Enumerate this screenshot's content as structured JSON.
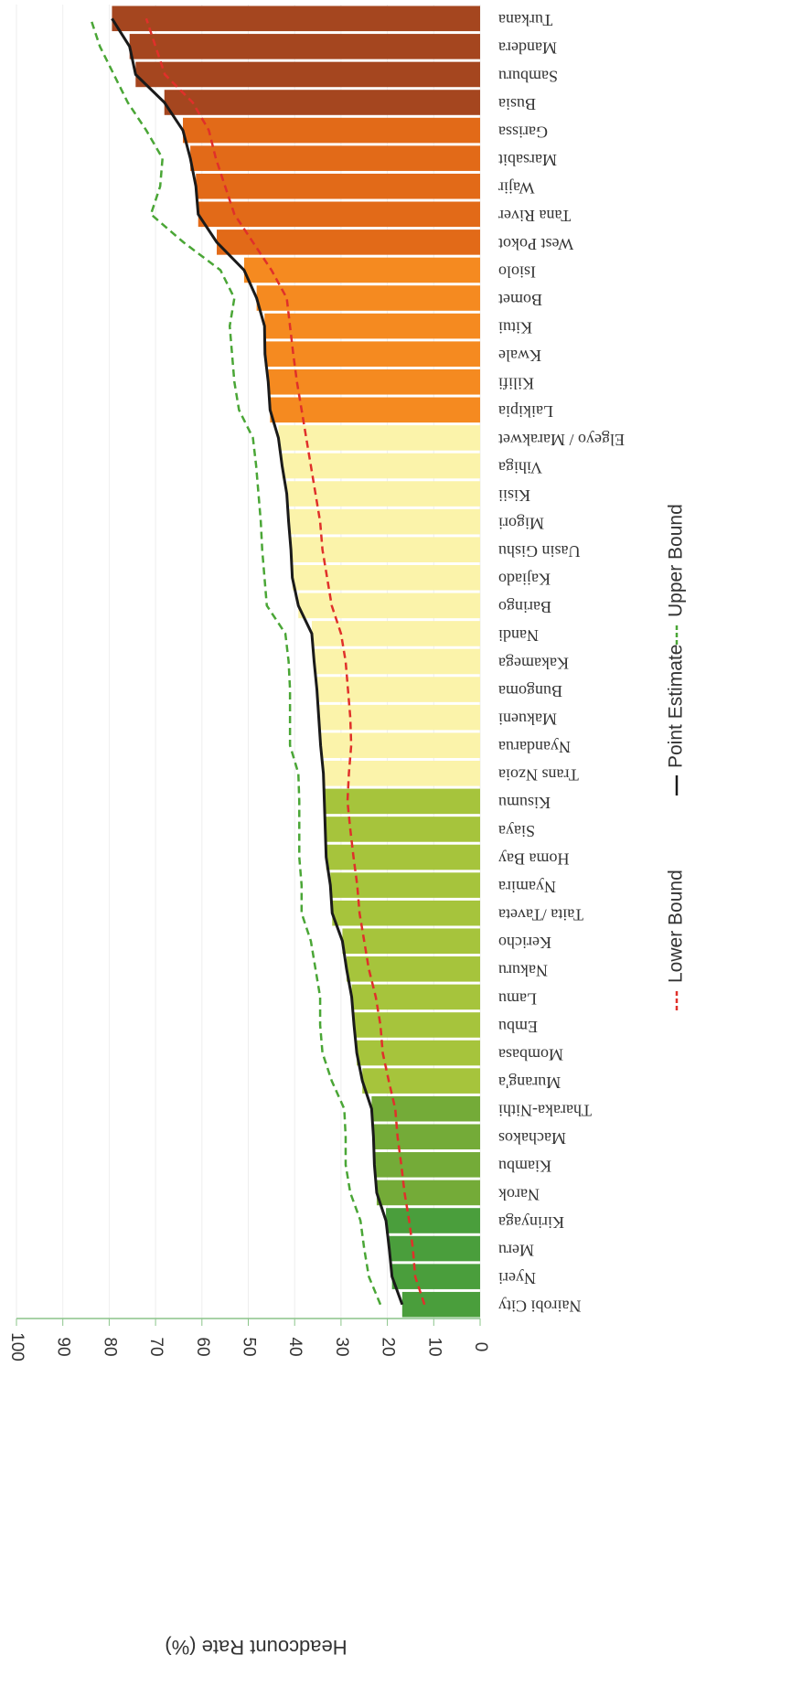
{
  "chart_data": {
    "type": "bar",
    "y_label": "Headcount Rate (%)",
    "categories": [
      "Nairobi City",
      "Nyeri",
      "Meru",
      "Kirinyaga",
      "Narok",
      "Kiambu",
      "Machakos",
      "Tharaka-Nithi",
      "Murang'a",
      "Mombasa",
      "Embu",
      "Lamu",
      "Nakuru",
      "Kericho",
      "Taita /Taveta",
      "Nyamira",
      "Homa Bay",
      "Siaya",
      "Kisumu",
      "Trans Nzoia",
      "Nyandarua",
      "Makueni",
      "Bungoma",
      "Kakamega",
      "Nandi",
      "Baringo",
      "Kajiado",
      "Uasin Gishu",
      "Migori",
      "Kisii",
      "Vihiga",
      "Elgeyo / Marakwet",
      "Laikipia",
      "Kilifi",
      "Kwale",
      "Kitui",
      "Bomet",
      "Isiolo",
      "West Pokot",
      "Tana River",
      "Wajir",
      "Marsabit",
      "Garissa",
      "Busia",
      "Samburu",
      "Mandera",
      "Turkana"
    ],
    "bar_colors": [
      "#4a9e3c",
      "#4a9e3c",
      "#4a9e3c",
      "#4a9e3c",
      "#74ab38",
      "#74ab38",
      "#74ab38",
      "#74ab38",
      "#a6c43c",
      "#a6c43c",
      "#a6c43c",
      "#a6c43c",
      "#a6c43c",
      "#a6c43c",
      "#a6c43c",
      "#a6c43c",
      "#a6c43c",
      "#a6c43c",
      "#a6c43c",
      "#fbf3aa",
      "#fbf3aa",
      "#fbf3aa",
      "#fbf3aa",
      "#fbf3aa",
      "#fbf3aa",
      "#fbf3aa",
      "#fbf3aa",
      "#fbf3aa",
      "#fbf3aa",
      "#fbf3aa",
      "#fbf3aa",
      "#fbf3aa",
      "#f58a20",
      "#f58a20",
      "#f58a20",
      "#f58a20",
      "#f58a20",
      "#f58a20",
      "#e26a18",
      "#e26a18",
      "#e26a18",
      "#e26a18",
      "#e26a18",
      "#a5461f",
      "#a5461f",
      "#a5461f",
      "#a5461f"
    ],
    "series": [
      {
        "name": "Lower Bound",
        "color": "#e0302a",
        "dash": true,
        "values": [
          12,
          14,
          14.5,
          15.3,
          16.3,
          17,
          17.8,
          18.3,
          19.7,
          21,
          21.5,
          22.5,
          24,
          25,
          26,
          26.5,
          27.3,
          28,
          28.6,
          28.3,
          27.8,
          28,
          28.5,
          29,
          30,
          32,
          33,
          34,
          34.5,
          35.5,
          36.5,
          37.5,
          38.5,
          39.5,
          40.3,
          41,
          41.7,
          45,
          49,
          53,
          55,
          57,
          58.5,
          62,
          68,
          70,
          72
        ]
      },
      {
        "name": "Point Estimate",
        "color": "#1a1a1a",
        "dash": false,
        "bars": true,
        "values": [
          16.8,
          19,
          19.6,
          20.3,
          22.3,
          22.8,
          23,
          23.4,
          25.4,
          26.6,
          27.2,
          27.7,
          28.8,
          29.7,
          31.9,
          32.3,
          33.2,
          33.4,
          33.6,
          33.8,
          34.4,
          34.8,
          35.2,
          35.8,
          36.3,
          39.2,
          40.5,
          40.8,
          41.3,
          41.7,
          42.7,
          43.5,
          45.3,
          45.7,
          46.4,
          46.5,
          48.2,
          50.9,
          56.8,
          60.8,
          61.3,
          62.5,
          64.1,
          68.1,
          74.3,
          75.6,
          79.4
        ]
      },
      {
        "name": "Upper Bound",
        "color": "#4aa636",
        "dash": true,
        "values": [
          21.5,
          24,
          25,
          25.8,
          28,
          29,
          29,
          29.3,
          32,
          34,
          34.5,
          34.5,
          35.5,
          36.5,
          38.5,
          38.5,
          39,
          39,
          39,
          39.2,
          41,
          41,
          41,
          41.3,
          42,
          46,
          46.5,
          47,
          47.3,
          47.8,
          48.3,
          49,
          52,
          53,
          53.5,
          54,
          53,
          56,
          64,
          71,
          69,
          68.5,
          72,
          76,
          79,
          82,
          84
        ]
      }
    ],
    "ylim": [
      0,
      100
    ],
    "yticks": [
      0,
      10,
      20,
      30,
      40,
      50,
      60,
      70,
      80,
      90,
      100
    ],
    "grid": true
  }
}
